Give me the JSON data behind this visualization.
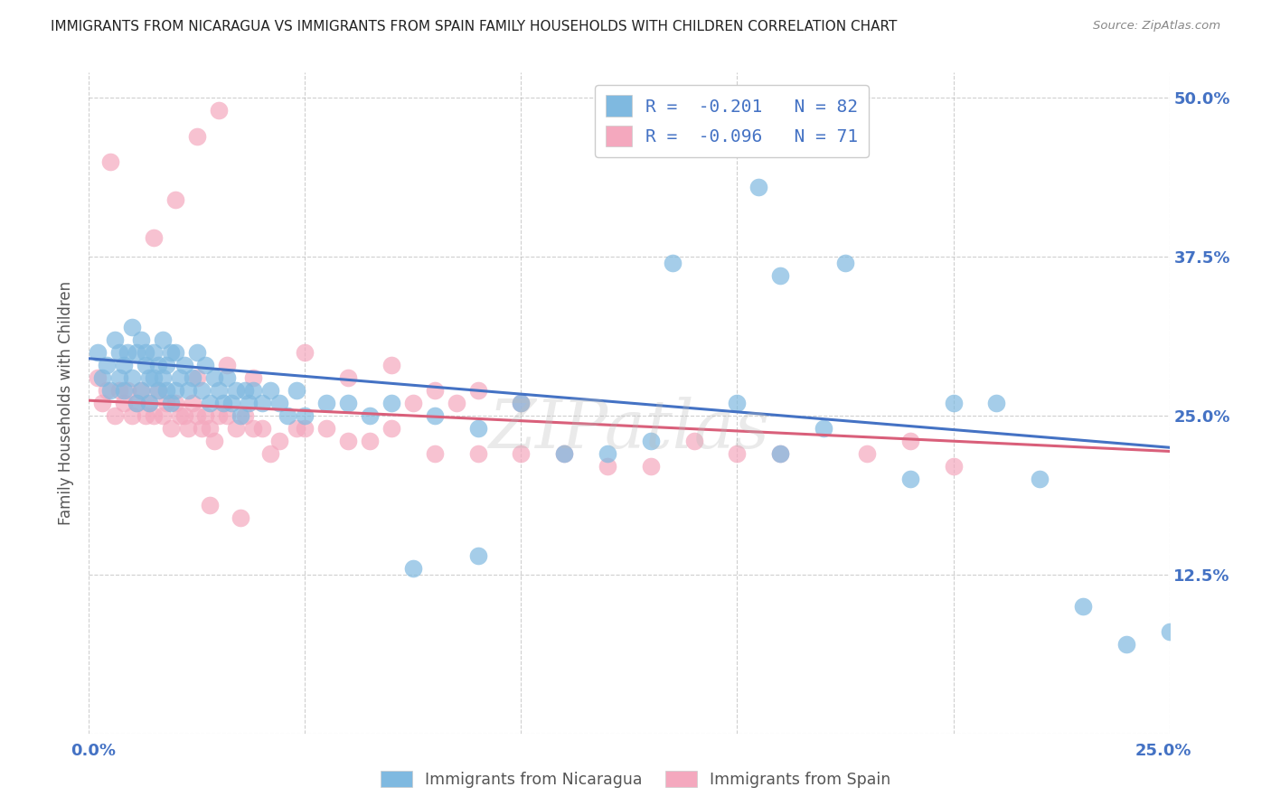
{
  "title": "IMMIGRANTS FROM NICARAGUA VS IMMIGRANTS FROM SPAIN FAMILY HOUSEHOLDS WITH CHILDREN CORRELATION CHART",
  "source": "Source: ZipAtlas.com",
  "ylabel": "Family Households with Children",
  "xlabel_bottom_left": "0.0%",
  "xlabel_bottom_right": "25.0%",
  "y_ticks": [
    0.0,
    0.125,
    0.25,
    0.375,
    0.5
  ],
  "y_tick_labels": [
    "",
    "12.5%",
    "25.0%",
    "37.5%",
    "50.0%"
  ],
  "x_lim": [
    0.0,
    0.25
  ],
  "y_lim": [
    0.0,
    0.52
  ],
  "legend_r_nicaragua": "R =  -0.201",
  "legend_n_nicaragua": "N = 82",
  "legend_r_spain": "R =  -0.096",
  "legend_n_spain": "N = 71",
  "legend_label_nicaragua": "Immigrants from Nicaragua",
  "legend_label_spain": "Immigrants from Spain",
  "watermark": "ZIPatlas",
  "blue_color": "#7fb9e0",
  "pink_color": "#f4a8be",
  "blue_line_color": "#4472c4",
  "pink_line_color": "#d95f7a",
  "title_color": "#333333",
  "right_tick_color": "#4472c4",
  "background_color": "#ffffff",
  "grid_color": "#bbbbbb",
  "nicaragua_x": [
    0.002,
    0.003,
    0.004,
    0.005,
    0.006,
    0.007,
    0.007,
    0.008,
    0.008,
    0.009,
    0.01,
    0.01,
    0.011,
    0.011,
    0.012,
    0.012,
    0.013,
    0.013,
    0.014,
    0.014,
    0.015,
    0.015,
    0.016,
    0.016,
    0.017,
    0.017,
    0.018,
    0.018,
    0.019,
    0.019,
    0.02,
    0.02,
    0.021,
    0.022,
    0.023,
    0.024,
    0.025,
    0.026,
    0.027,
    0.028,
    0.029,
    0.03,
    0.031,
    0.032,
    0.033,
    0.034,
    0.035,
    0.036,
    0.037,
    0.038,
    0.04,
    0.042,
    0.044,
    0.046,
    0.048,
    0.05,
    0.055,
    0.06,
    0.065,
    0.07,
    0.08,
    0.09,
    0.1,
    0.11,
    0.12,
    0.13,
    0.15,
    0.16,
    0.17,
    0.19,
    0.2,
    0.21,
    0.22,
    0.23,
    0.16,
    0.175,
    0.135,
    0.155,
    0.24,
    0.25,
    0.09,
    0.075
  ],
  "nicaragua_y": [
    0.3,
    0.28,
    0.29,
    0.27,
    0.31,
    0.28,
    0.3,
    0.29,
    0.27,
    0.3,
    0.32,
    0.28,
    0.3,
    0.26,
    0.31,
    0.27,
    0.29,
    0.3,
    0.28,
    0.26,
    0.3,
    0.28,
    0.29,
    0.27,
    0.31,
    0.28,
    0.29,
    0.27,
    0.3,
    0.26,
    0.3,
    0.27,
    0.28,
    0.29,
    0.27,
    0.28,
    0.3,
    0.27,
    0.29,
    0.26,
    0.28,
    0.27,
    0.26,
    0.28,
    0.26,
    0.27,
    0.25,
    0.27,
    0.26,
    0.27,
    0.26,
    0.27,
    0.26,
    0.25,
    0.27,
    0.25,
    0.26,
    0.26,
    0.25,
    0.26,
    0.25,
    0.24,
    0.26,
    0.22,
    0.22,
    0.23,
    0.26,
    0.22,
    0.24,
    0.2,
    0.26,
    0.26,
    0.2,
    0.1,
    0.36,
    0.37,
    0.37,
    0.43,
    0.07,
    0.08,
    0.14,
    0.13
  ],
  "spain_x": [
    0.002,
    0.003,
    0.004,
    0.005,
    0.006,
    0.007,
    0.008,
    0.009,
    0.01,
    0.011,
    0.012,
    0.013,
    0.014,
    0.015,
    0.016,
    0.017,
    0.018,
    0.019,
    0.02,
    0.021,
    0.022,
    0.023,
    0.024,
    0.025,
    0.026,
    0.027,
    0.028,
    0.029,
    0.03,
    0.032,
    0.034,
    0.036,
    0.038,
    0.04,
    0.044,
    0.048,
    0.05,
    0.055,
    0.06,
    0.065,
    0.07,
    0.08,
    0.09,
    0.1,
    0.11,
    0.12,
    0.13,
    0.15,
    0.16,
    0.18,
    0.19,
    0.2,
    0.14,
    0.035,
    0.042,
    0.028,
    0.025,
    0.032,
    0.038,
    0.05,
    0.06,
    0.07,
    0.075,
    0.08,
    0.085,
    0.09,
    0.1,
    0.015,
    0.02,
    0.025,
    0.03
  ],
  "spain_y": [
    0.28,
    0.26,
    0.27,
    0.45,
    0.25,
    0.27,
    0.26,
    0.27,
    0.25,
    0.26,
    0.27,
    0.25,
    0.26,
    0.25,
    0.27,
    0.25,
    0.26,
    0.24,
    0.26,
    0.25,
    0.25,
    0.24,
    0.26,
    0.25,
    0.24,
    0.25,
    0.24,
    0.23,
    0.25,
    0.25,
    0.24,
    0.25,
    0.24,
    0.24,
    0.23,
    0.24,
    0.24,
    0.24,
    0.23,
    0.23,
    0.24,
    0.22,
    0.22,
    0.22,
    0.22,
    0.21,
    0.21,
    0.22,
    0.22,
    0.22,
    0.23,
    0.21,
    0.23,
    0.17,
    0.22,
    0.18,
    0.28,
    0.29,
    0.28,
    0.3,
    0.28,
    0.29,
    0.26,
    0.27,
    0.26,
    0.27,
    0.26,
    0.39,
    0.42,
    0.47,
    0.49
  ],
  "blue_line_x0": 0.0,
  "blue_line_y0": 0.295,
  "blue_line_x1": 0.25,
  "blue_line_y1": 0.225,
  "pink_line_x0": 0.0,
  "pink_line_y0": 0.262,
  "pink_line_x1": 0.25,
  "pink_line_y1": 0.222
}
